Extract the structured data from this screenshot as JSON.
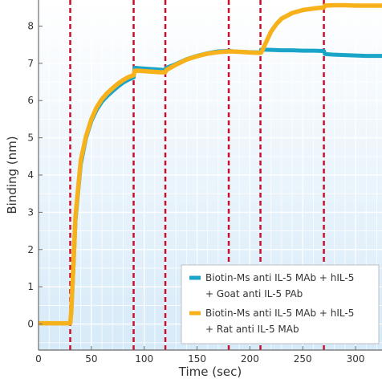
{
  "chart_data": {
    "type": "line",
    "xlabel": "Time (sec)",
    "ylabel": "Binding (nm)",
    "xlim": [
      0,
      325
    ],
    "ylim": [
      -0.7,
      8.7
    ],
    "x_ticks": [
      0,
      50,
      100,
      150,
      200,
      250,
      300
    ],
    "y_ticks": [
      0,
      1,
      2,
      3,
      4,
      5,
      6,
      7,
      8
    ],
    "grid": true,
    "background_gradient": [
      "#ffffff",
      "#d6eaf8"
    ],
    "step_markers": {
      "x": [
        30,
        90,
        120,
        180,
        210,
        270
      ],
      "color": "#c8102e"
    },
    "legend_position": "bottom-right",
    "series": [
      {
        "name_lines": [
          "Biotin-Ms anti IL-5 MAb + hIL-5",
          "+ Goat anti IL-5 PAb"
        ],
        "color": "#1aa5c8",
        "x": [
          0,
          30,
          31,
          33,
          35,
          38,
          40,
          45,
          50,
          55,
          60,
          65,
          70,
          75,
          80,
          85,
          90,
          91,
          95,
          100,
          105,
          110,
          115,
          120,
          121,
          130,
          140,
          150,
          160,
          170,
          180,
          190,
          200,
          210,
          211,
          220,
          230,
          240,
          250,
          260,
          270,
          271,
          280,
          290,
          300,
          310,
          320,
          325
        ],
        "y": [
          0.02,
          0.02,
          0.3,
          1.5,
          2.8,
          3.7,
          4.3,
          5.0,
          5.45,
          5.75,
          5.97,
          6.12,
          6.25,
          6.37,
          6.48,
          6.56,
          6.62,
          6.88,
          6.87,
          6.86,
          6.85,
          6.84,
          6.83,
          6.82,
          6.88,
          6.98,
          7.11,
          7.2,
          7.27,
          7.32,
          7.33,
          7.31,
          7.3,
          7.29,
          7.37,
          7.36,
          7.35,
          7.35,
          7.34,
          7.34,
          7.33,
          7.25,
          7.23,
          7.22,
          7.21,
          7.2,
          7.2,
          7.2
        ]
      },
      {
        "name_lines": [
          "Biotin-Ms anti IL-5 MAb + hIL-5",
          "+ Rat anti IL-5 MAb"
        ],
        "color": "#f7b21b",
        "x": [
          0,
          30,
          31,
          33,
          35,
          38,
          40,
          45,
          50,
          55,
          60,
          65,
          70,
          75,
          80,
          85,
          90,
          91,
          95,
          100,
          105,
          110,
          115,
          120,
          121,
          130,
          140,
          150,
          160,
          170,
          180,
          190,
          200,
          210,
          211,
          215,
          220,
          225,
          230,
          240,
          250,
          260,
          270,
          271,
          280,
          290,
          300,
          310,
          320,
          325
        ],
        "y": [
          0.02,
          0.02,
          0.35,
          1.6,
          2.9,
          3.8,
          4.4,
          5.05,
          5.5,
          5.82,
          6.04,
          6.2,
          6.33,
          6.45,
          6.55,
          6.63,
          6.68,
          6.8,
          6.8,
          6.79,
          6.78,
          6.77,
          6.76,
          6.76,
          6.82,
          6.96,
          7.1,
          7.19,
          7.26,
          7.3,
          7.32,
          7.31,
          7.29,
          7.28,
          7.3,
          7.55,
          7.85,
          8.05,
          8.2,
          8.35,
          8.43,
          8.47,
          8.5,
          8.55,
          8.56,
          8.56,
          8.55,
          8.55,
          8.55,
          8.55
        ]
      }
    ]
  }
}
